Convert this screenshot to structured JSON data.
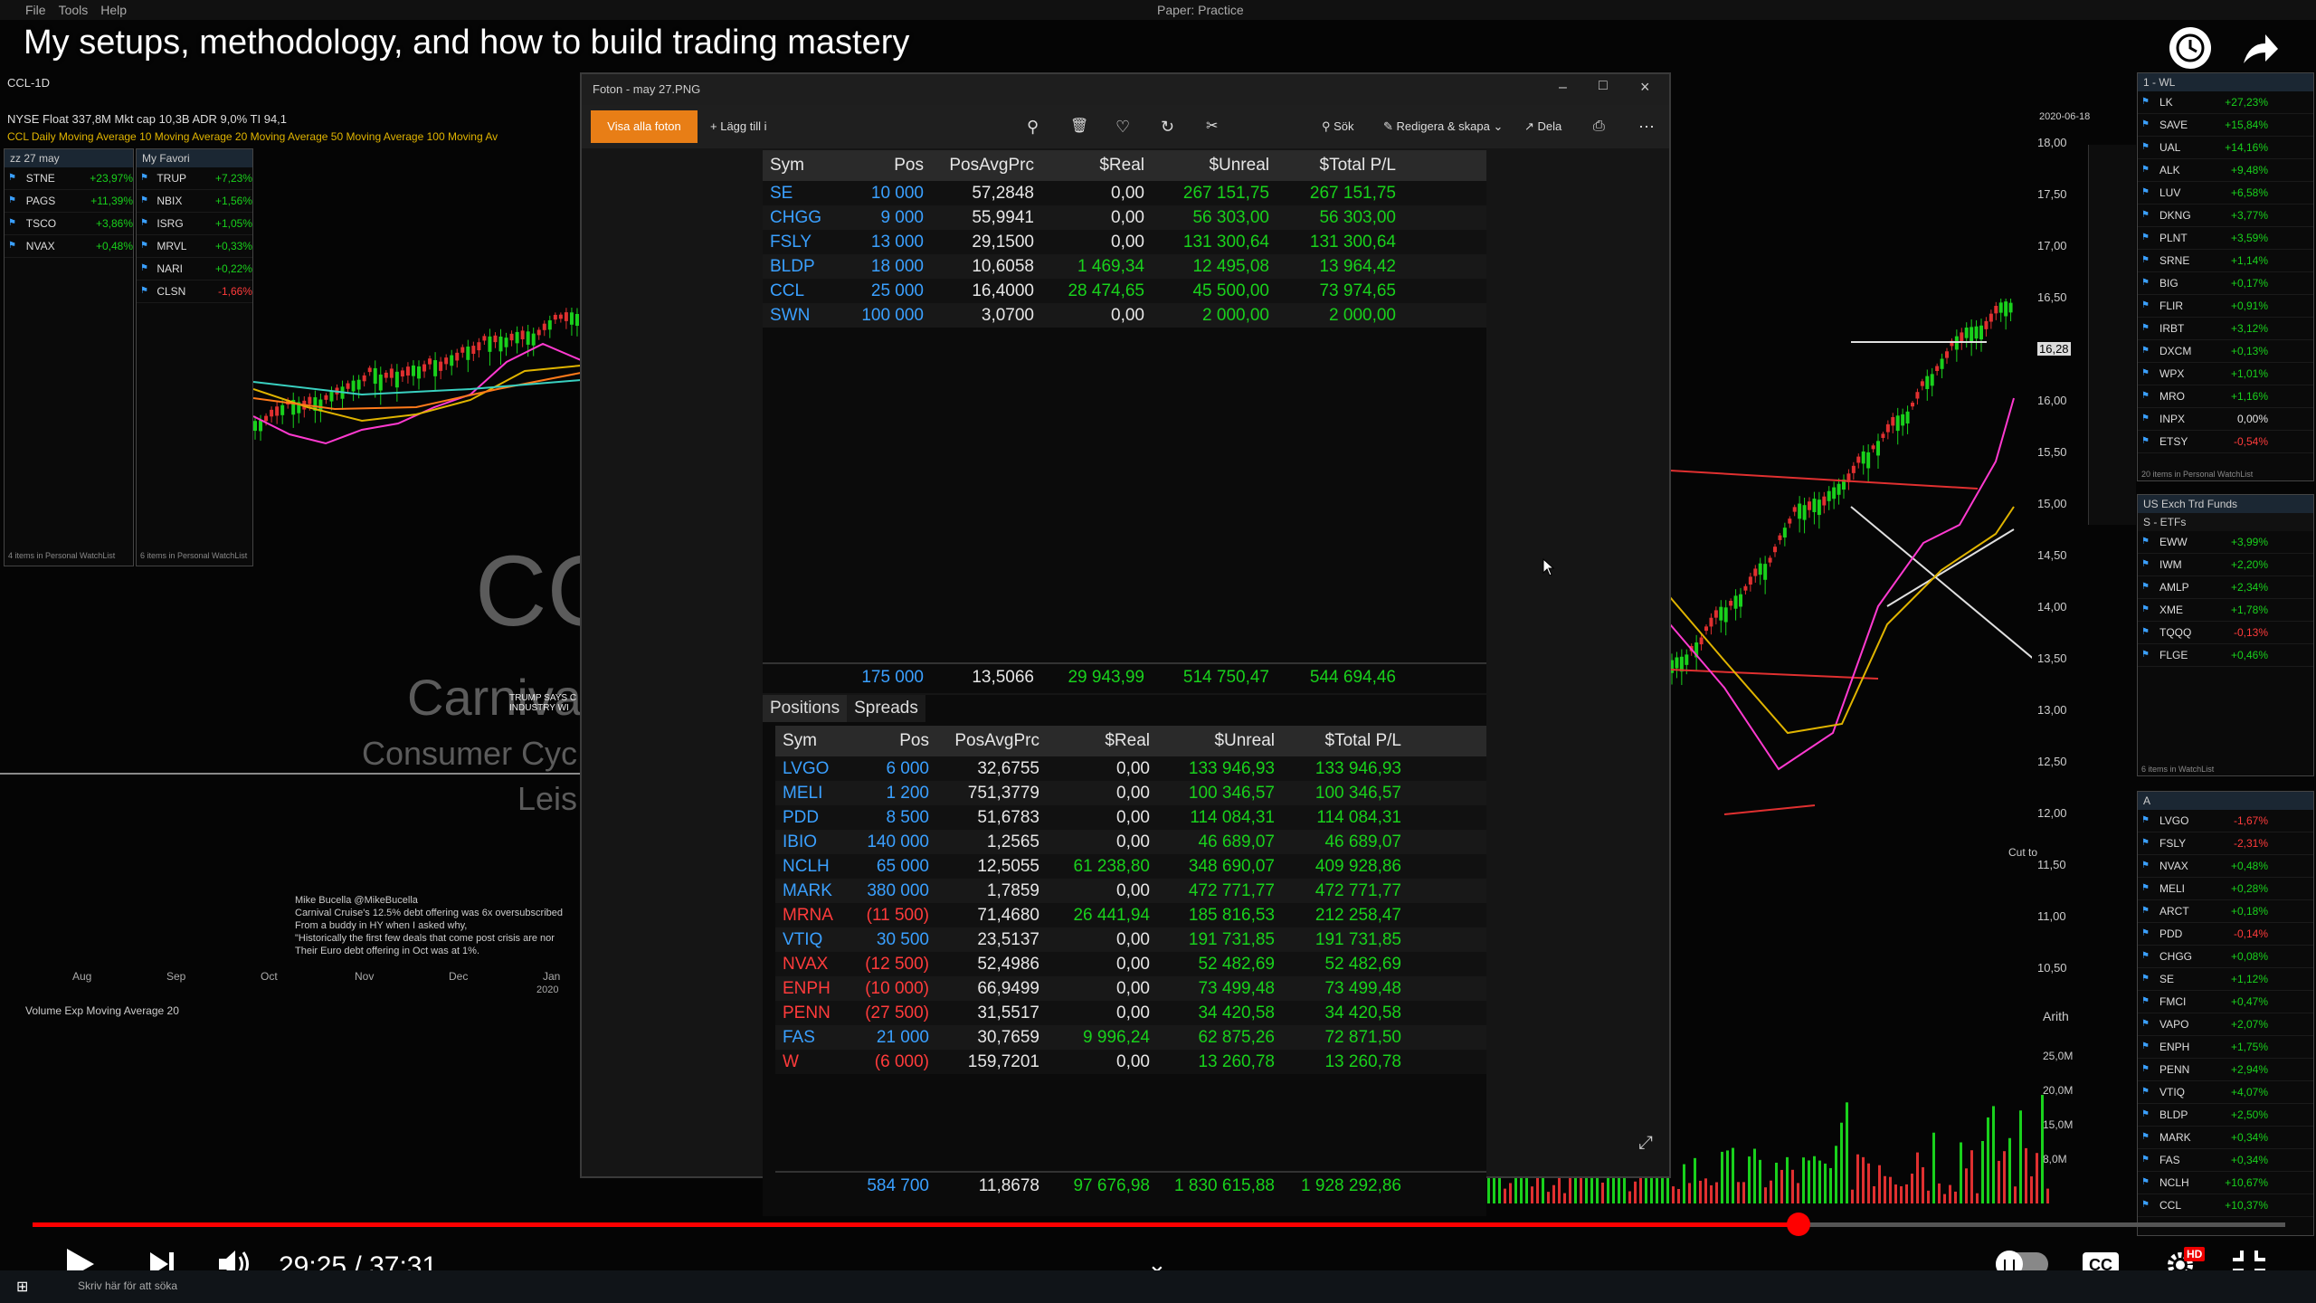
{
  "video": {
    "title": "My setups, methodology, and how to build trading mastery",
    "time_current": "29:25",
    "time_total": "37:31",
    "time_display": "29:25 / 37:31",
    "progress": 0.784,
    "quality_badge": "HD"
  },
  "platform": {
    "menu": [
      "File",
      "Tools",
      "Help"
    ],
    "paper_mode": "Paper: Practice",
    "symbol_bar": "CCL-1D",
    "stats": "NYSE  Float 337,8M  Mkt cap 10,3B  ADR 9,0%  TI 94,1",
    "legend": "CCL Daily  Moving Average 10  Moving Average 20  Moving Average 50  Moving Average 100  Moving Av",
    "watermark_big": "CC",
    "watermark_name": "Carniva",
    "watermark_sector": "Consumer Cyc",
    "watermark_industry": "Leis",
    "tweet_author": "Mike Bucella @MikeBucella",
    "tweet_lines": [
      "Carnival Cruise's 12.5% debt offering was 6x oversubscribed",
      "From a buddy in HY when I asked why,",
      "\"Historically the first few deals that come post crisis are nor",
      "Their Euro debt offering in Oct was at 1%."
    ],
    "news_text": "TRUMP SAYS C",
    "news_text2": "INDUSTRY WI",
    "months": [
      "Aug",
      "Sep",
      "Oct",
      "Nov",
      "Dec",
      "Jan"
    ],
    "year": "2020",
    "volume_label": "Volume  Exp Moving Average 20",
    "right_date": "2020-06-18",
    "price_ticks": [
      "18,00",
      "17,50",
      "17,00",
      "16,50",
      "16,28",
      "16,00",
      "15,50",
      "15,00",
      "14,50",
      "14,00",
      "13,50",
      "13,00",
      "12,50",
      "12,00",
      "11,50",
      "11,00",
      "10,50"
    ],
    "cut_to": "Cut to",
    "arith": "Arith",
    "vol_ticks": [
      "25,0M",
      "20,0M",
      "15,0M",
      "8,0M"
    ],
    "taskbar_search": "Skriv här för att söka"
  },
  "watchlists": {
    "left1": {
      "title": "zz 27 may",
      "rows": [
        {
          "sym": "STNE",
          "chg": "+23,97%",
          "color": "green"
        },
        {
          "sym": "PAGS",
          "chg": "+11,39%",
          "color": "green"
        },
        {
          "sym": "TSCO",
          "chg": "+3,86%",
          "color": "green"
        },
        {
          "sym": "NVAX",
          "chg": "+0,48%",
          "color": "green"
        }
      ],
      "footer": "4 items in Personal WatchList"
    },
    "left2": {
      "title": "My Favori",
      "rows": [
        {
          "sym": "TRUP",
          "chg": "+7,23%",
          "color": "green"
        },
        {
          "sym": "NBIX",
          "chg": "+1,56%",
          "color": "green"
        },
        {
          "sym": "ISRG",
          "chg": "+1,05%",
          "color": "green"
        },
        {
          "sym": "MRVL",
          "chg": "+0,33%",
          "color": "green"
        },
        {
          "sym": "NARI",
          "chg": "+0,22%",
          "color": "green"
        },
        {
          "sym": "CLSN",
          "chg": "-1,66%",
          "color": "red"
        }
      ],
      "footer": "6 items in Personal WatchList"
    },
    "right1": {
      "title": "1 - WL",
      "rows": [
        {
          "sym": "LK",
          "chg": "+27,23%",
          "color": "green"
        },
        {
          "sym": "SAVE",
          "chg": "+15,84%",
          "color": "green"
        },
        {
          "sym": "UAL",
          "chg": "+14,16%",
          "color": "green"
        },
        {
          "sym": "ALK",
          "chg": "+9,48%",
          "color": "green"
        },
        {
          "sym": "LUV",
          "chg": "+6,58%",
          "color": "green"
        },
        {
          "sym": "DKNG",
          "chg": "+3,77%",
          "color": "green"
        },
        {
          "sym": "PLNT",
          "chg": "+3,59%",
          "color": "green"
        },
        {
          "sym": "SRNE",
          "chg": "+1,14%",
          "color": "green"
        },
        {
          "sym": "BIG",
          "chg": "+0,17%",
          "color": "green"
        },
        {
          "sym": "FLIR",
          "chg": "+0,91%",
          "color": "green"
        },
        {
          "sym": "IRBT",
          "chg": "+3,12%",
          "color": "green"
        },
        {
          "sym": "DXCM",
          "chg": "+0,13%",
          "color": "green"
        },
        {
          "sym": "WPX",
          "chg": "+1,01%",
          "color": "green"
        },
        {
          "sym": "MRO",
          "chg": "+1,16%",
          "color": "green"
        },
        {
          "sym": "INPX",
          "chg": "0,00%",
          "color": "white"
        },
        {
          "sym": "ETSY",
          "chg": "-0,54%",
          "color": "red"
        }
      ],
      "footer": "20 items in Personal WatchList"
    },
    "right2": {
      "title": "US Exch Trd Funds",
      "subtitle": "S - ETFs",
      "rows": [
        {
          "sym": "EWW",
          "chg": "+3,99%",
          "color": "green"
        },
        {
          "sym": "IWM",
          "chg": "+2,20%",
          "color": "green"
        },
        {
          "sym": "AMLP",
          "chg": "+2,34%",
          "color": "green"
        },
        {
          "sym": "XME",
          "chg": "+1,78%",
          "color": "green"
        },
        {
          "sym": "TQQQ",
          "chg": "-0,13%",
          "color": "red"
        },
        {
          "sym": "FLGE",
          "chg": "+0,46%",
          "color": "green"
        }
      ],
      "footer": "6 items in WatchList"
    },
    "right3": {
      "title": "A",
      "rows": [
        {
          "sym": "LVGO",
          "chg": "-1,67%",
          "color": "red"
        },
        {
          "sym": "FSLY",
          "chg": "-2,31%",
          "color": "red"
        },
        {
          "sym": "NVAX",
          "chg": "+0,48%",
          "color": "green"
        },
        {
          "sym": "MELI",
          "chg": "+0,28%",
          "color": "green"
        },
        {
          "sym": "ARCT",
          "chg": "+0,18%",
          "color": "green"
        },
        {
          "sym": "PDD",
          "chg": "-0,14%",
          "color": "red"
        },
        {
          "sym": "CHGG",
          "chg": "+0,08%",
          "color": "green"
        },
        {
          "sym": "SE",
          "chg": "+1,12%",
          "color": "green"
        },
        {
          "sym": "FMCI",
          "chg": "+0,47%",
          "color": "green"
        },
        {
          "sym": "VAPO",
          "chg": "+2,07%",
          "color": "green"
        },
        {
          "sym": "ENPH",
          "chg": "+1,75%",
          "color": "green"
        },
        {
          "sym": "PENN",
          "chg": "+2,94%",
          "color": "green"
        },
        {
          "sym": "VTIQ",
          "chg": "+4,07%",
          "color": "green"
        },
        {
          "sym": "BLDP",
          "chg": "+2,50%",
          "color": "green"
        },
        {
          "sym": "MARK",
          "chg": "+0,34%",
          "color": "green"
        },
        {
          "sym": "FAS",
          "chg": "+0,34%",
          "color": "green"
        },
        {
          "sym": "NCLH",
          "chg": "+10,67%",
          "color": "green"
        },
        {
          "sym": "CCL",
          "chg": "+10,37%",
          "color": "green"
        }
      ]
    }
  },
  "viewer": {
    "title": "Foton - may 27.PNG",
    "btn_all_photos": "Visa alla foton",
    "btn_add": "Lägg till i",
    "btn_search": "Sök",
    "btn_edit": "Redigera & skapa",
    "btn_share": "Dela",
    "table1": {
      "headers": [
        "Sym",
        "Pos",
        "PosAvgPrc",
        "$Real",
        "$Unreal",
        "$Total P/L"
      ],
      "rows": [
        {
          "sym": "SE",
          "pos": "10 000",
          "avg": "57,2848",
          "real": "0,00",
          "unreal": "267 151,75",
          "total": "267 151,75",
          "neg": false
        },
        {
          "sym": "CHGG",
          "pos": "9 000",
          "avg": "55,9941",
          "real": "0,00",
          "unreal": "56 303,00",
          "total": "56 303,00",
          "neg": false
        },
        {
          "sym": "FSLY",
          "pos": "13 000",
          "avg": "29,1500",
          "real": "0,00",
          "unreal": "131 300,64",
          "total": "131 300,64",
          "neg": false
        },
        {
          "sym": "BLDP",
          "pos": "18 000",
          "avg": "10,6058",
          "real": "1 469,34",
          "unreal": "12 495,08",
          "total": "13 964,42",
          "neg": false
        },
        {
          "sym": "CCL",
          "pos": "25 000",
          "avg": "16,4000",
          "real": "28 474,65",
          "unreal": "45 500,00",
          "total": "73 974,65",
          "neg": false
        },
        {
          "sym": "SWN",
          "pos": "100 000",
          "avg": "3,0700",
          "real": "0,00",
          "unreal": "2 000,00",
          "total": "2 000,00",
          "neg": false
        }
      ],
      "totals": {
        "pos": "175 000",
        "avg": "13,5066",
        "real": "29 943,99",
        "unreal": "514 750,47",
        "total": "544 694,46"
      }
    },
    "tabs": [
      "Positions",
      "Spreads"
    ],
    "table2": {
      "headers": [
        "Sym",
        "Pos",
        "PosAvgPrc",
        "$Real",
        "$Unreal",
        "$Total P/L"
      ],
      "rows": [
        {
          "sym": "LVGO",
          "pos": "6 000",
          "avg": "32,6755",
          "real": "0,00",
          "unreal": "133 946,93",
          "total": "133 946,93",
          "neg": false
        },
        {
          "sym": "MELI",
          "pos": "1 200",
          "avg": "751,3779",
          "real": "0,00",
          "unreal": "100 346,57",
          "total": "100 346,57",
          "neg": false
        },
        {
          "sym": "PDD",
          "pos": "8 500",
          "avg": "51,6783",
          "real": "0,00",
          "unreal": "114 084,31",
          "total": "114 084,31",
          "neg": false
        },
        {
          "sym": "IBIO",
          "pos": "140 000",
          "avg": "1,2565",
          "real": "0,00",
          "unreal": "46 689,07",
          "total": "46 689,07",
          "neg": false
        },
        {
          "sym": "NCLH",
          "pos": "65 000",
          "avg": "12,5055",
          "real": "61 238,80",
          "unreal": "348 690,07",
          "total": "409 928,86",
          "neg": false
        },
        {
          "sym": "MARK",
          "pos": "380 000",
          "avg": "1,7859",
          "real": "0,00",
          "unreal": "472 771,77",
          "total": "472 771,77",
          "neg": false
        },
        {
          "sym": "MRNA",
          "pos": "(11 500)",
          "avg": "71,4680",
          "real": "26 441,94",
          "unreal": "185 816,53",
          "total": "212 258,47",
          "neg": true
        },
        {
          "sym": "VTIQ",
          "pos": "30 500",
          "avg": "23,5137",
          "real": "0,00",
          "unreal": "191 731,85",
          "total": "191 731,85",
          "neg": false
        },
        {
          "sym": "NVAX",
          "pos": "(12 500)",
          "avg": "52,4986",
          "real": "0,00",
          "unreal": "52 482,69",
          "total": "52 482,69",
          "neg": true
        },
        {
          "sym": "ENPH",
          "pos": "(10 000)",
          "avg": "66,9499",
          "real": "0,00",
          "unreal": "73 499,48",
          "total": "73 499,48",
          "neg": true
        },
        {
          "sym": "PENN",
          "pos": "(27 500)",
          "avg": "31,5517",
          "real": "0,00",
          "unreal": "34 420,58",
          "total": "34 420,58",
          "neg": true
        },
        {
          "sym": "FAS",
          "pos": "21 000",
          "avg": "30,7659",
          "real": "9 996,24",
          "unreal": "62 875,26",
          "total": "72 871,50",
          "neg": false
        },
        {
          "sym": "W",
          "pos": "(6 000)",
          "avg": "159,7201",
          "real": "0,00",
          "unreal": "13 260,78",
          "total": "13 260,78",
          "neg": true
        }
      ],
      "totals": {
        "pos": "584 700",
        "avg": "11,8678",
        "real": "97 676,98",
        "unreal": "1 830 615,88",
        "total": "1 928 292,86"
      }
    }
  }
}
